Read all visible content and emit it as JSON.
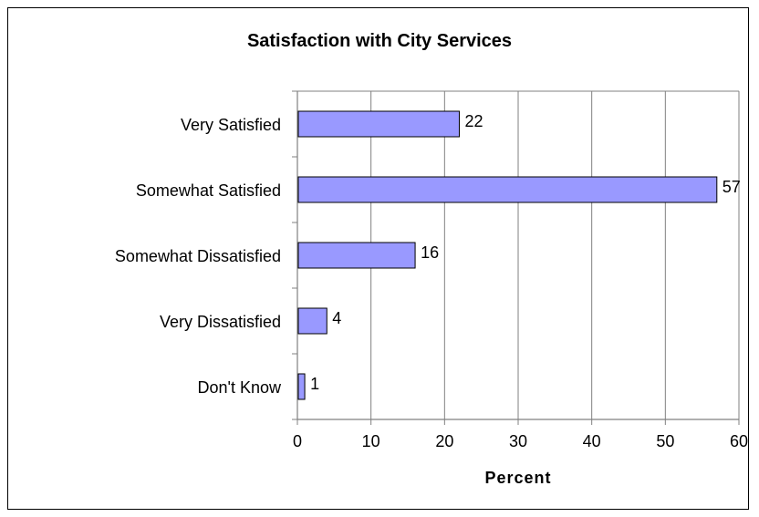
{
  "chart_data": {
    "type": "bar",
    "orientation": "horizontal",
    "title": "Satisfaction with City Services",
    "xlabel": "Percent",
    "ylabel": "",
    "categories": [
      "Very Satisfied",
      "Somewhat Satisfied",
      "Somewhat Dissatisfied",
      "Very Dissatisfied",
      "Don't Know"
    ],
    "values": [
      22,
      57,
      16,
      4,
      1
    ],
    "xlim": [
      0,
      60
    ],
    "xticks": [
      0,
      10,
      20,
      30,
      40,
      50,
      60
    ],
    "grid": "vertical",
    "legend": "none",
    "bar_color": "#9999FF",
    "bar_edge_color": "#000000"
  }
}
